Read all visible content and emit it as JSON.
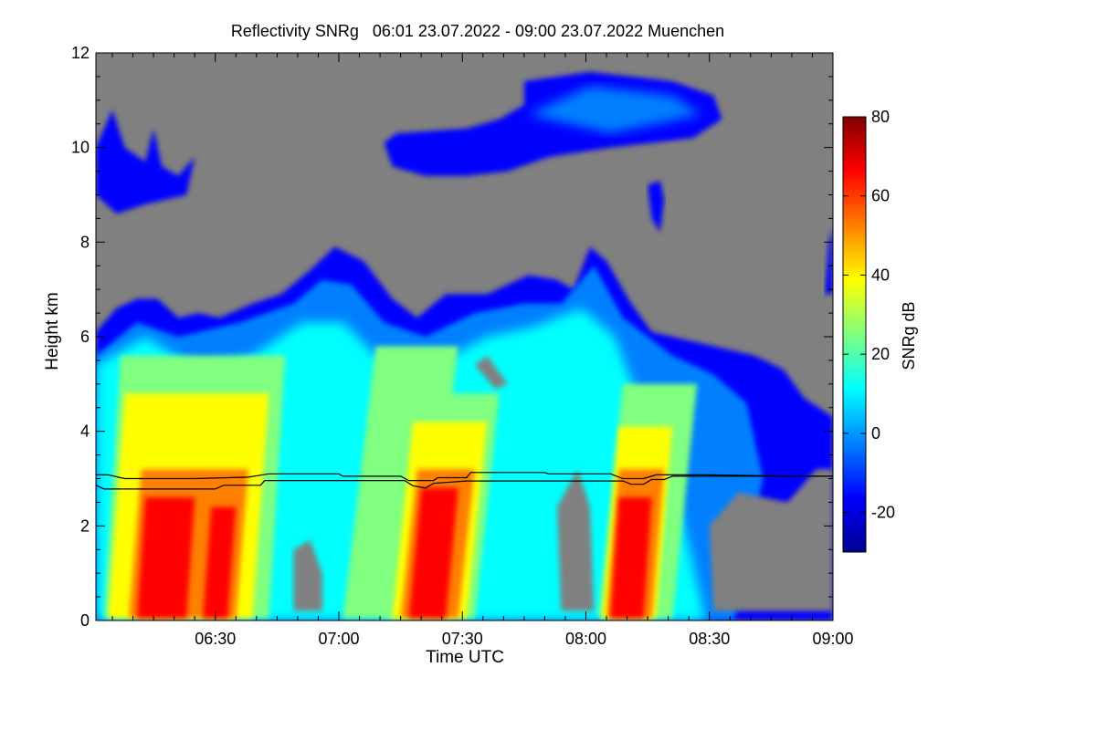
{
  "chart_data": {
    "type": "heatmap",
    "title": "Reflectivity SNRg   06:01 23.07.2022 - 09:00 23.07.2022 Muenchen",
    "xlabel": "Time UTC",
    "ylabel": "Height km",
    "colorbar_label": "SNRg dB",
    "x_range": [
      "06:01",
      "09:00"
    ],
    "x_ticks": [
      "06:30",
      "07:00",
      "07:30",
      "08:00",
      "08:30",
      "09:00"
    ],
    "y_range": [
      0,
      12
    ],
    "y_ticks": [
      "0",
      "2",
      "4",
      "6",
      "8",
      "10",
      "12"
    ],
    "colorbar_range": [
      -30,
      80
    ],
    "colorbar_ticks": [
      "-20",
      "0",
      "20",
      "40",
      "60",
      "80"
    ],
    "background_color": "#808080",
    "colormap": [
      "#00008f",
      "#0000ff",
      "#0080ff",
      "#00ffff",
      "#80ff80",
      "#ffff00",
      "#ff8000",
      "#ff0000",
      "#800000"
    ],
    "lines": [
      {
        "points": [
          [
            "06:01",
            3.08
          ],
          [
            "06:04",
            3.08
          ],
          [
            "06:08",
            3.0
          ],
          [
            "06:25",
            3.0
          ],
          [
            "06:38",
            3.03
          ],
          [
            "06:43",
            3.1
          ],
          [
            "07:00",
            3.1
          ],
          [
            "07:01",
            3.05
          ],
          [
            "07:15",
            3.05
          ],
          [
            "07:17",
            2.96
          ],
          [
            "07:23",
            2.96
          ],
          [
            "07:24",
            3.02
          ],
          [
            "07:31",
            3.02
          ],
          [
            "07:32",
            3.13
          ],
          [
            "07:50",
            3.13
          ],
          [
            "07:51",
            3.1
          ],
          [
            "08:06",
            3.1
          ],
          [
            "08:09",
            3.0
          ],
          [
            "08:14",
            3.0
          ],
          [
            "08:17",
            3.08
          ],
          [
            "08:30",
            3.08
          ],
          [
            "08:50",
            3.05
          ],
          [
            "09:00",
            3.05
          ]
        ]
      },
      {
        "points": [
          [
            "06:01",
            2.86
          ],
          [
            "06:03",
            2.78
          ],
          [
            "06:30",
            2.78
          ],
          [
            "06:32",
            2.86
          ],
          [
            "06:41",
            2.86
          ],
          [
            "06:42",
            2.96
          ],
          [
            "07:16",
            2.96
          ],
          [
            "07:18",
            2.85
          ],
          [
            "07:21",
            2.8
          ],
          [
            "07:23",
            2.9
          ],
          [
            "07:31",
            2.95
          ],
          [
            "08:09",
            2.95
          ],
          [
            "08:11",
            2.88
          ],
          [
            "08:14",
            2.88
          ],
          [
            "08:16",
            2.98
          ],
          [
            "08:19",
            2.98
          ],
          [
            "08:21",
            3.05
          ],
          [
            "09:00",
            3.05
          ]
        ]
      }
    ],
    "grid": false
  }
}
